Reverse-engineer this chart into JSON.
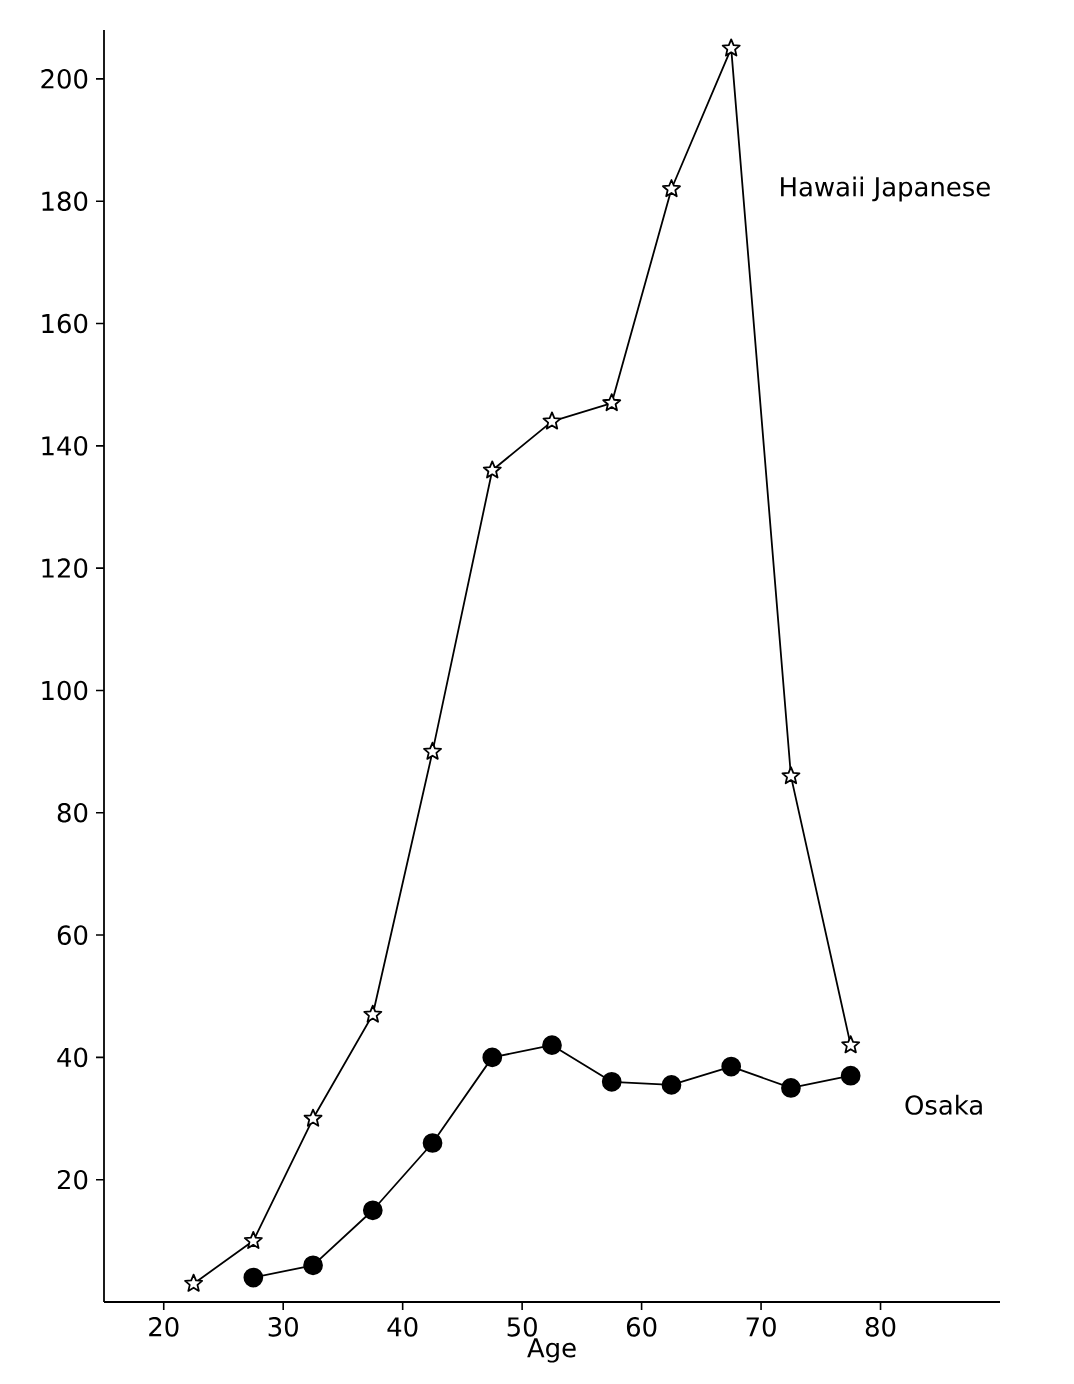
{
  "chart_data": {
    "type": "line",
    "xlabel": "Age",
    "xlim": [
      15,
      90
    ],
    "ylim": [
      0,
      208
    ],
    "xticks": [
      20,
      30,
      40,
      50,
      60,
      70,
      80
    ],
    "yticks": [
      20,
      40,
      60,
      80,
      100,
      120,
      140,
      160,
      180,
      200
    ],
    "grid": false,
    "legend": false,
    "line_style": "solid",
    "series": [
      {
        "name": "Hawaii Japanese",
        "color": "#000000",
        "marker": "star",
        "x": [
          22.5,
          27.5,
          32.5,
          37.5,
          42.5,
          47.5,
          52.5,
          57.5,
          62.5,
          67.5,
          72.5,
          77.5
        ],
        "values": [
          3,
          10,
          30,
          47,
          90,
          136,
          144,
          147,
          182,
          205,
          86,
          42
        ]
      },
      {
        "name": "Osaka",
        "color": "#000000",
        "marker": "circle",
        "x": [
          27.5,
          32.5,
          37.5,
          42.5,
          47.5,
          52.5,
          57.5,
          62.5,
          67.5,
          72.5,
          77.5
        ],
        "values": [
          4,
          6,
          15,
          26,
          40,
          42,
          36,
          35.5,
          38.5,
          35,
          37
        ]
      }
    ]
  }
}
